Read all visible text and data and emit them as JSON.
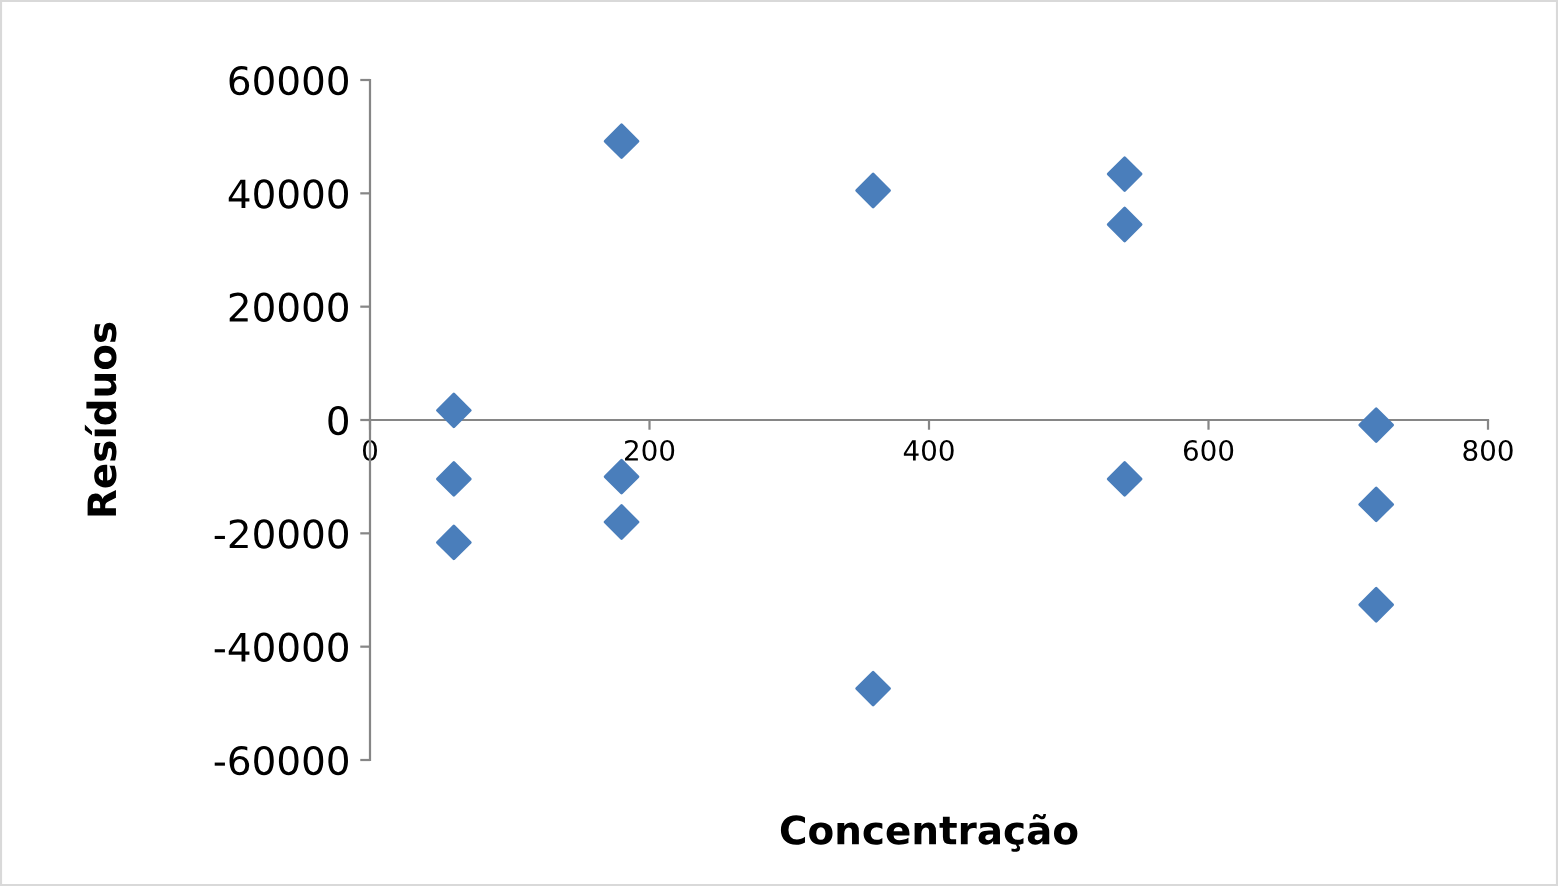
{
  "chart_data": {
    "type": "scatter",
    "xlabel": "Concentração",
    "ylabel": "Resíduos",
    "x": [
      60,
      60,
      60,
      180,
      180,
      180,
      360,
      360,
      540,
      540,
      540,
      720,
      720,
      720
    ],
    "values": [
      1700,
      -10400,
      -21600,
      49200,
      -10000,
      -18000,
      40500,
      -47400,
      43400,
      34500,
      -10400,
      -900,
      -14900,
      -32600
    ],
    "color": "#4a7ebb",
    "marker": "diamond",
    "xlim": [
      0,
      800
    ],
    "xticks": [
      0,
      200,
      400,
      600,
      800
    ],
    "ylim": [
      -60000,
      60000
    ],
    "yticks": [
      -60000,
      -40000,
      -20000,
      0,
      20000,
      40000,
      60000
    ],
    "grid": false,
    "legend": false
  }
}
